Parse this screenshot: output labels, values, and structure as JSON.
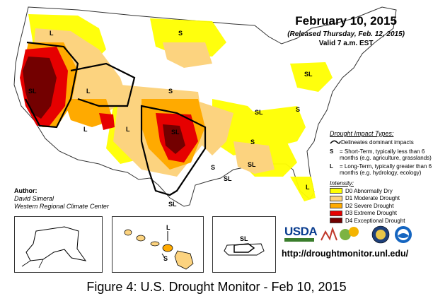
{
  "header": {
    "date": "February 10, 2015",
    "release": "(Released Thursday, Feb. 12, 2015)",
    "valid": "Valid 7 a.m. EST"
  },
  "impact_types": {
    "title": "Drought Impact Types:",
    "dominant": "Delineates dominant impacts",
    "short_key": "S",
    "short_text": "= Short-Term, typically less than 6 months (e.g. agriculture, grasslands)",
    "long_key": "L",
    "long_text": "= Long-Term, typically greater than 6 months (e.g. hydrology, ecology)"
  },
  "intensity": {
    "title": "Intensity:",
    "levels": [
      {
        "label": "D0 Abnormally Dry",
        "color": "#ffff00"
      },
      {
        "label": "D1 Moderate Drought",
        "color": "#fcd37f"
      },
      {
        "label": "D2 Severe Drought",
        "color": "#ffaa00"
      },
      {
        "label": "D3 Extreme Drought",
        "color": "#e60000"
      },
      {
        "label": "D4 Exceptional Drought",
        "color": "#730000"
      }
    ]
  },
  "author": {
    "title": "Author:",
    "name": "David Simeral",
    "org": "Western Regional Climate Center"
  },
  "map_labels": {
    "nw": "L",
    "mt": "S",
    "ca": "SL",
    "nv": "L",
    "az": "L",
    "nm": "L",
    "tx": "SL",
    "ne": "S",
    "ny": "SL",
    "va": "S",
    "tn": "SL",
    "sl_mid": "SL",
    "ga": "S",
    "ga2": "SL",
    "tx_s": "SL",
    "tx_far": "SL",
    "la": "S",
    "fl": "L",
    "hi_l": "L",
    "hi_s": "S",
    "pr": "SL"
  },
  "logos": {
    "usda": "USDA",
    "url": "http://droughtmonitor.unl.edu/"
  },
  "caption": "Figure 4: U.S. Drought Monitor - Feb 10, 2015"
}
